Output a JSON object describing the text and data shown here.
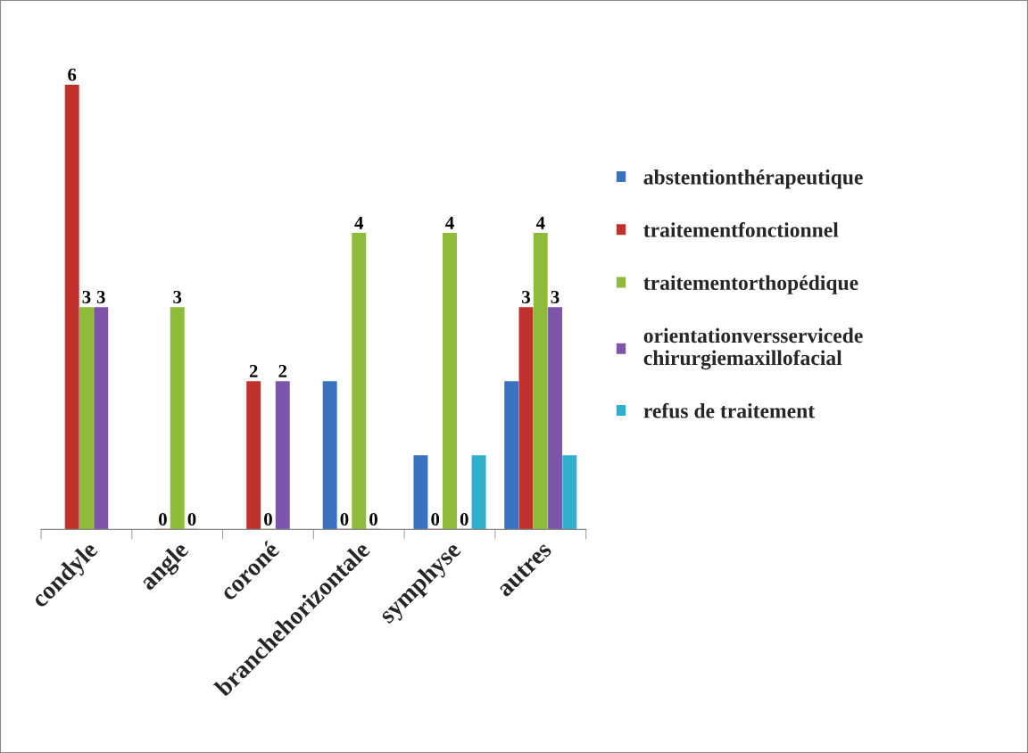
{
  "chart_data": {
    "type": "bar",
    "categories": [
      "condyle",
      "angle",
      "coroné",
      "branchehorizontale",
      "symphyse",
      "autres"
    ],
    "series": [
      {
        "name": "abstentionthérapeutique",
        "color": "#3a72c0",
        "values": [
          null,
          null,
          null,
          2,
          1,
          2
        ]
      },
      {
        "name": "traitementfonctionnel",
        "color": "#c0302c",
        "values": [
          6,
          0,
          2,
          0,
          0,
          3
        ],
        "value_labels": [
          "6",
          "0",
          "2",
          "0",
          "0",
          "3"
        ]
      },
      {
        "name": "traitementorthopédique",
        "color": "#8fbb3a",
        "values": [
          3,
          3,
          0,
          4,
          4,
          4
        ],
        "value_labels": [
          "3",
          "3",
          "0",
          "4",
          "4",
          "4"
        ]
      },
      {
        "name": "orientationversservicede chirurgiemaxillofacial",
        "color": "#7d55a8",
        "values": [
          3,
          0,
          2,
          0,
          0,
          3
        ],
        "value_labels": [
          "3",
          "0",
          "2",
          "0",
          "0",
          "3"
        ]
      },
      {
        "name": "refus de traitement",
        "color": "#2fb0cc",
        "values": [
          null,
          null,
          null,
          null,
          1,
          1
        ]
      }
    ],
    "legend": "right",
    "grid": false
  }
}
